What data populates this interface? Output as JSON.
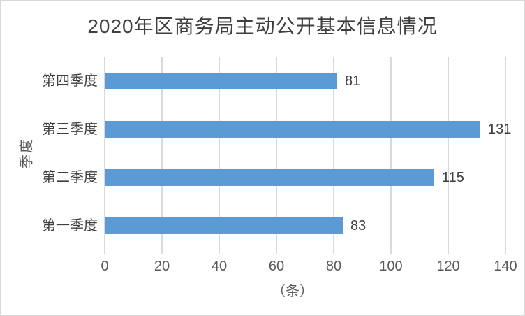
{
  "chart_data": {
    "type": "bar",
    "orientation": "horizontal",
    "title": "2020年区商务局主动公开基本信息情况",
    "categories": [
      "第四季度",
      "第三季度",
      "第二季度",
      "第一季度"
    ],
    "values": [
      81,
      131,
      115,
      83
    ],
    "xlabel": "（条）",
    "ylabel": "季度",
    "xlim": [
      0,
      140
    ],
    "x_ticks": [
      0,
      20,
      40,
      60,
      80,
      100,
      120,
      140
    ],
    "grid": true,
    "data_labels": true,
    "legend": "none",
    "colors": {
      "bar": "#5b9bd5",
      "gridline": "#d9d9d9",
      "title_text": "#3f3f3f",
      "axis_text": "#595959",
      "border": "#d9d9d9"
    }
  }
}
